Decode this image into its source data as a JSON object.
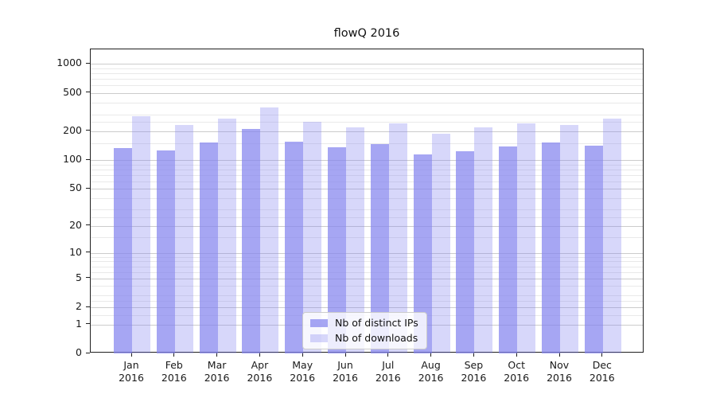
{
  "chart_data": {
    "type": "bar",
    "title": "flowQ 2016",
    "xlabel": "",
    "ylabel": "",
    "y_scale": "symlog (position ~ log(1+value))",
    "categories": [
      "Jan",
      "Feb",
      "Mar",
      "Apr",
      "May",
      "Jun",
      "Jul",
      "Aug",
      "Sep",
      "Oct",
      "Nov",
      "Dec"
    ],
    "category_year_label": "2016",
    "series": [
      {
        "name": "Nb of distinct IPs",
        "color": "rgba(132,132,238,0.72)",
        "values": [
          134,
          126,
          152,
          212,
          157,
          136,
          147,
          114,
          123,
          140,
          154,
          142
        ]
      },
      {
        "name": "Nb of downloads",
        "color": "rgba(132,132,238,0.32)",
        "values": [
          288,
          232,
          272,
          353,
          249,
          222,
          240,
          190,
          222,
          240,
          232,
          269
        ]
      }
    ],
    "y_ticks": [
      1000,
      500,
      200,
      100,
      50,
      20,
      10,
      5,
      2,
      1,
      0
    ],
    "y_minor_ticks": [
      900,
      800,
      700,
      600,
      400,
      300,
      250,
      150,
      90,
      80,
      70,
      60,
      40,
      30,
      25,
      15,
      9,
      8,
      7,
      6,
      4,
      3,
      2.5,
      1.5
    ],
    "ylim": [
      0,
      1420
    ],
    "grid": true,
    "legend": {
      "position": "lower-center",
      "entries": [
        "Nb of distinct IPs",
        "Nb of downloads"
      ]
    }
  },
  "colors": {
    "bar_distinct_ips": "rgba(132,132,238,0.72)",
    "bar_downloads": "rgba(132,132,238,0.32)",
    "grid_major": "#cccccc",
    "grid_minor": "#e9e9e9",
    "axis_spine": "#1f1f1f",
    "text": "#1a1a1a",
    "legend_background": "rgba(255,255,255,0.8)",
    "legend_border": "#cccccc"
  }
}
